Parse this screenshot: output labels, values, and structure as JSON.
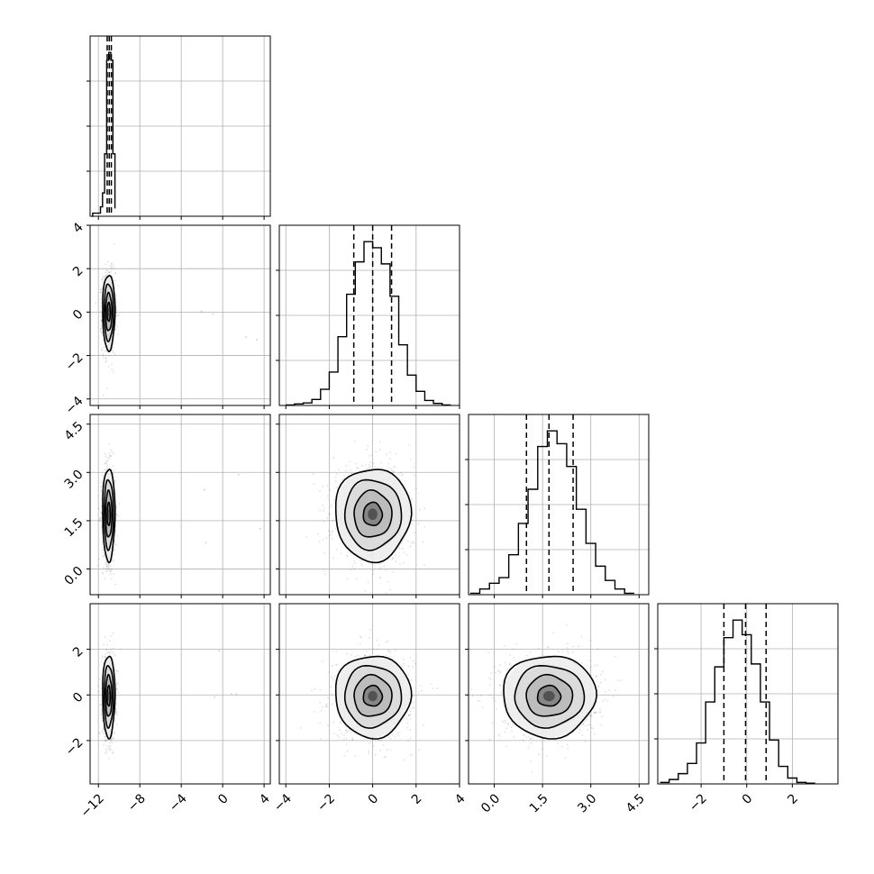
{
  "chart_data": {
    "type": "scatter",
    "title": "",
    "parameters": [
      {
        "index": 0,
        "range": [
          -12.8,
          4.6
        ],
        "ticks": [
          -12,
          -8,
          -4,
          0,
          4
        ],
        "tick_labels": [
          "−12",
          "−8",
          "−4",
          "0",
          "4"
        ]
      },
      {
        "index": 1,
        "range": [
          -4.3,
          4.0
        ],
        "ticks": [
          -4,
          -2,
          0,
          2,
          4
        ],
        "tick_labels": [
          "−4",
          "−2",
          "0",
          "2",
          "4"
        ]
      },
      {
        "index": 2,
        "range": [
          -0.8,
          4.8
        ],
        "ticks": [
          0.0,
          1.5,
          3.0,
          4.5
        ],
        "tick_labels": [
          "0.0",
          "1.5",
          "3.0",
          "4.5"
        ]
      },
      {
        "index": 3,
        "range": [
          -3.9,
          4.0
        ],
        "ticks": [
          -2,
          0,
          2
        ],
        "tick_labels": [
          "−2",
          "0",
          "2"
        ]
      }
    ],
    "marginals": [
      {
        "index": 0,
        "quantiles": [
          -11.15,
          -10.95,
          -10.75
        ],
        "bins": [
          -12.6,
          -12.55,
          -12.0,
          -11.8,
          -11.6,
          -11.4,
          -11.2,
          -11.0,
          -10.8,
          -10.6,
          -10.4
        ],
        "counts": [
          0,
          0.2,
          0.2,
          0.6,
          1.5,
          4,
          10,
          10.5,
          10,
          4,
          0.5
        ]
      },
      {
        "index": 1,
        "quantiles": [
          -0.87,
          0.0,
          0.87
        ],
        "bins": [
          -4.0,
          -3.6,
          -3.2,
          -2.8,
          -2.4,
          -2.0,
          -1.6,
          -1.2,
          -0.8,
          -0.4,
          0.0,
          0.4,
          0.8,
          1.2,
          1.6,
          2.0,
          2.4,
          2.8,
          3.2,
          3.6
        ],
        "counts": [
          0.5,
          1.5,
          2.5,
          6,
          16,
          33,
          68,
          110,
          142,
          162,
          156,
          140,
          108,
          60,
          30,
          14,
          5,
          2,
          0.5
        ]
      },
      {
        "index": 2,
        "quantiles": [
          1.0,
          1.7,
          2.45
        ],
        "bins": [
          -0.75,
          -0.45,
          -0.15,
          0.15,
          0.45,
          0.75,
          1.05,
          1.35,
          1.65,
          1.95,
          2.25,
          2.55,
          2.85,
          3.15,
          3.45,
          3.75,
          4.05,
          4.35
        ],
        "counts": [
          1,
          4,
          8,
          12,
          28,
          50,
          74,
          104,
          115,
          106,
          90,
          60,
          36,
          20,
          10,
          4,
          1
        ]
      },
      {
        "index": 3,
        "quantiles": [
          -1.0,
          -0.05,
          0.85
        ],
        "bins": [
          -3.8,
          -3.4,
          -3.0,
          -2.6,
          -2.2,
          -1.8,
          -1.4,
          -1.0,
          -0.6,
          -0.2,
          0.2,
          0.6,
          1.0,
          1.4,
          1.8,
          2.2,
          2.6,
          3.0
        ],
        "counts": [
          1,
          3,
          7,
          14,
          28,
          56,
          80,
          100,
          112,
          102,
          82,
          56,
          30,
          12,
          4,
          1,
          0.5
        ]
      }
    ],
    "pairs": [
      {
        "x": 0,
        "y": 1,
        "center": [
          -11.0,
          0.0
        ],
        "sigma": [
          0.3,
          0.87
        ]
      },
      {
        "x": 0,
        "y": 2,
        "center": [
          -11.0,
          1.7
        ],
        "sigma": [
          0.3,
          0.72
        ]
      },
      {
        "x": 0,
        "y": 3,
        "center": [
          -11.0,
          -0.05
        ],
        "sigma": [
          0.3,
          0.9
        ]
      },
      {
        "x": 1,
        "y": 2,
        "center": [
          0.0,
          1.7
        ],
        "sigma": [
          0.87,
          0.72
        ]
      },
      {
        "x": 1,
        "y": 3,
        "center": [
          0.0,
          -0.05
        ],
        "sigma": [
          0.87,
          0.9
        ]
      },
      {
        "x": 2,
        "y": 3,
        "center": [
          1.7,
          -0.05
        ],
        "sigma": [
          0.72,
          0.9
        ]
      }
    ],
    "contour_levels_sigma": [
      0.5,
      1.0,
      1.5,
      2.0
    ],
    "grid": true
  }
}
